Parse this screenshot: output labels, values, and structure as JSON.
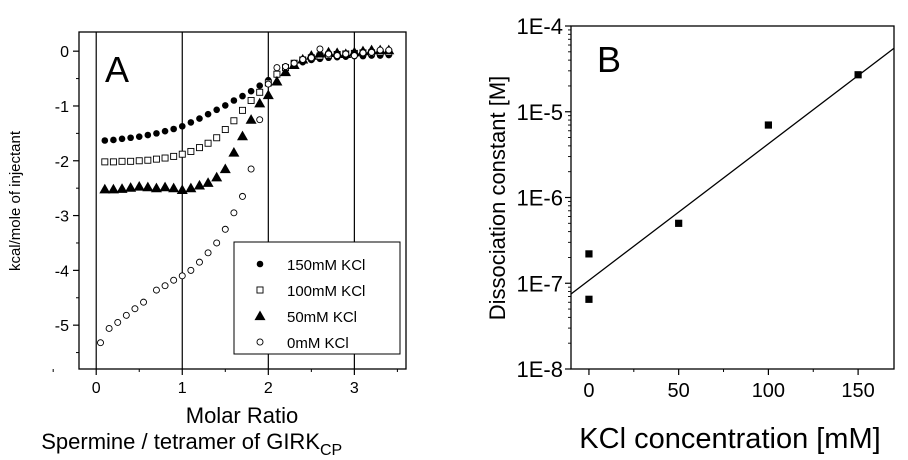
{
  "chart_data": [
    {
      "type": "scatter",
      "panel_label": "A",
      "xlabel_line1": "Molar Ratio",
      "xlabel_line2": "Spermine / tetramer of GIRK",
      "xlabel_line2_sub": "CP",
      "ylabel": "kcal/mole of injectant",
      "xlim": [
        -0.2,
        3.6
      ],
      "ylim": [
        -5.8,
        0.35
      ],
      "x_ticks": [
        0,
        1,
        2,
        3
      ],
      "y_ticks": [
        0,
        -1,
        -2,
        -3,
        -4,
        -5
      ],
      "vlines": [
        0,
        1,
        2,
        3
      ],
      "grid": false,
      "legend_position": "bottom-right",
      "series": [
        {
          "name": "150mM KCl",
          "marker": "filled-circle",
          "points": [
            [
              0.1,
              -1.63
            ],
            [
              0.2,
              -1.62
            ],
            [
              0.3,
              -1.6
            ],
            [
              0.4,
              -1.58
            ],
            [
              0.5,
              -1.56
            ],
            [
              0.6,
              -1.53
            ],
            [
              0.7,
              -1.5
            ],
            [
              0.8,
              -1.46
            ],
            [
              0.9,
              -1.42
            ],
            [
              1.0,
              -1.37
            ],
            [
              1.1,
              -1.3
            ],
            [
              1.2,
              -1.23
            ],
            [
              1.3,
              -1.15
            ],
            [
              1.4,
              -1.07
            ],
            [
              1.5,
              -0.99
            ],
            [
              1.6,
              -0.9
            ],
            [
              1.7,
              -0.82
            ],
            [
              1.8,
              -0.73
            ],
            [
              1.9,
              -0.63
            ],
            [
              2.0,
              -0.53
            ],
            [
              2.1,
              -0.43
            ],
            [
              2.2,
              -0.33
            ],
            [
              2.3,
              -0.26
            ],
            [
              2.4,
              -0.2
            ],
            [
              2.5,
              -0.16
            ],
            [
              2.6,
              -0.14
            ],
            [
              2.7,
              -0.12
            ],
            [
              2.8,
              -0.11
            ],
            [
              2.9,
              -0.1
            ],
            [
              3.0,
              -0.09
            ],
            [
              3.1,
              -0.09
            ],
            [
              3.2,
              -0.08
            ],
            [
              3.3,
              -0.08
            ],
            [
              3.4,
              -0.07
            ]
          ]
        },
        {
          "name": "100mM KCl",
          "marker": "open-square",
          "points": [
            [
              0.1,
              -2.02
            ],
            [
              0.2,
              -2.02
            ],
            [
              0.3,
              -2.01
            ],
            [
              0.4,
              -2.01
            ],
            [
              0.5,
              -2.0
            ],
            [
              0.6,
              -1.99
            ],
            [
              0.7,
              -1.97
            ],
            [
              0.8,
              -1.95
            ],
            [
              0.9,
              -1.92
            ],
            [
              1.0,
              -1.88
            ],
            [
              1.1,
              -1.83
            ],
            [
              1.2,
              -1.76
            ],
            [
              1.3,
              -1.68
            ],
            [
              1.4,
              -1.58
            ],
            [
              1.5,
              -1.43
            ],
            [
              1.6,
              -1.27
            ],
            [
              1.7,
              -1.08
            ],
            [
              1.8,
              -0.9
            ],
            [
              1.9,
              -0.75
            ],
            [
              2.0,
              -0.58
            ],
            [
              2.1,
              -0.42
            ],
            [
              2.2,
              -0.3
            ],
            [
              2.3,
              -0.22
            ],
            [
              2.4,
              -0.16
            ],
            [
              2.5,
              -0.12
            ],
            [
              2.6,
              -0.09
            ],
            [
              2.7,
              -0.07
            ],
            [
              2.8,
              -0.06
            ],
            [
              2.9,
              -0.05
            ],
            [
              3.0,
              -0.04
            ],
            [
              3.1,
              -0.03
            ],
            [
              3.2,
              -0.03
            ],
            [
              3.3,
              -0.02
            ],
            [
              3.4,
              -0.02
            ]
          ]
        },
        {
          "name": "50mM KCl",
          "marker": "filled-triangle",
          "points": [
            [
              0.1,
              -2.52
            ],
            [
              0.2,
              -2.52
            ],
            [
              0.3,
              -2.51
            ],
            [
              0.4,
              -2.49
            ],
            [
              0.5,
              -2.47
            ],
            [
              0.6,
              -2.48
            ],
            [
              0.7,
              -2.5
            ],
            [
              0.8,
              -2.48
            ],
            [
              0.9,
              -2.5
            ],
            [
              1.0,
              -2.53
            ],
            [
              1.1,
              -2.5
            ],
            [
              1.2,
              -2.45
            ],
            [
              1.3,
              -2.4
            ],
            [
              1.4,
              -2.3
            ],
            [
              1.5,
              -2.15
            ],
            [
              1.6,
              -1.85
            ],
            [
              1.7,
              -1.55
            ],
            [
              1.8,
              -1.25
            ],
            [
              1.9,
              -0.95
            ],
            [
              2.0,
              -0.8
            ],
            [
              2.1,
              -0.55
            ],
            [
              2.2,
              -0.38
            ],
            [
              2.3,
              -0.25
            ],
            [
              2.4,
              -0.15
            ],
            [
              2.5,
              -0.08
            ],
            [
              2.6,
              -0.04
            ],
            [
              2.7,
              -0.02
            ],
            [
              2.8,
              -0.03
            ],
            [
              2.9,
              -0.05
            ],
            [
              3.0,
              -0.02
            ],
            [
              3.1,
              0.0
            ],
            [
              3.2,
              0.02
            ],
            [
              3.3,
              0.02
            ],
            [
              3.4,
              0.02
            ]
          ]
        },
        {
          "name": "0mM KCl",
          "marker": "open-circle",
          "points": [
            [
              0.05,
              -5.32
            ],
            [
              0.15,
              -5.06
            ],
            [
              0.25,
              -4.95
            ],
            [
              0.35,
              -4.82
            ],
            [
              0.45,
              -4.7
            ],
            [
              0.55,
              -4.58
            ],
            [
              0.7,
              -4.36
            ],
            [
              0.8,
              -4.28
            ],
            [
              0.9,
              -4.18
            ],
            [
              1.0,
              -4.1
            ],
            [
              1.1,
              -4.0
            ],
            [
              1.2,
              -3.85
            ],
            [
              1.3,
              -3.68
            ],
            [
              1.4,
              -3.5
            ],
            [
              1.5,
              -3.25
            ],
            [
              1.6,
              -2.95
            ],
            [
              1.7,
              -2.65
            ],
            [
              1.8,
              -2.15
            ],
            [
              1.9,
              -1.25
            ],
            [
              2.0,
              -0.6
            ],
            [
              2.1,
              -0.3
            ],
            [
              2.2,
              -0.28
            ],
            [
              2.3,
              -0.22
            ],
            [
              2.4,
              -0.15
            ],
            [
              2.5,
              -0.12
            ],
            [
              2.6,
              0.04
            ],
            [
              2.7,
              -0.05
            ],
            [
              2.8,
              -0.08
            ],
            [
              2.9,
              -0.05
            ],
            [
              3.0,
              -0.08
            ],
            [
              3.1,
              -0.03
            ],
            [
              3.2,
              -0.02
            ],
            [
              3.3,
              0.02
            ],
            [
              3.4,
              0.02
            ]
          ]
        }
      ]
    },
    {
      "type": "scatter",
      "panel_label": "B",
      "xlabel": "KCl concentration [mM]",
      "ylabel": "Dissociation constant [M]",
      "y_scale": "log",
      "xlim": [
        -10,
        170
      ],
      "ylim": [
        1e-08,
        0.0001
      ],
      "x_ticks": [
        0,
        50,
        100,
        150
      ],
      "y_tick_labels": [
        "1E-8",
        "1E-7",
        "1E-6",
        "1E-5",
        "1E-4"
      ],
      "y_tick_values": [
        1e-08,
        1e-07,
        1e-06,
        1e-05,
        0.0001
      ],
      "grid": false,
      "marker": "filled-square",
      "points": [
        [
          0,
          6.5e-08
        ],
        [
          0,
          2.2e-07
        ],
        [
          50,
          5e-07
        ],
        [
          100,
          7e-06
        ],
        [
          150,
          2.7e-05
        ]
      ],
      "fit_line": [
        [
          -10,
          7.5e-08
        ],
        [
          170,
          5.5e-05
        ]
      ]
    }
  ]
}
